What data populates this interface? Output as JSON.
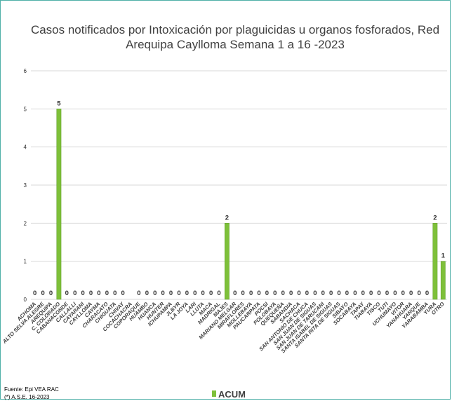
{
  "chart_data": {
    "type": "bar",
    "title_lines": [
      "Casos notificados por Intoxicación por plaguicidas u organos fosforados, Red",
      "Arequipa Caylloma Semana 1 a 16 -2023"
    ],
    "xlabel": "",
    "ylabel": "",
    "ylim": [
      0,
      6
    ],
    "yticks": [
      0,
      1,
      2,
      3,
      4,
      5,
      6
    ],
    "grid": true,
    "legend_position": "bottom",
    "categories": [
      "ACHOMA",
      "ALTO SELVA ALEGRE",
      "AREQUIPA",
      "C. COLORADO",
      "CABANACONDE",
      "CALLALLI",
      "CAYARANI",
      "CAYLLOMA",
      "CAYMA",
      "CHARACATO",
      "CHIGUATA",
      "CHIVAY",
      "COCACHACRA",
      "COPORAQUE",
      "HUAMBO",
      "HUANCA",
      "HUNTER",
      "ICHUPAMPA",
      "JLBYR",
      "LA JOYA",
      "LARI",
      "LLUTA",
      "MACA",
      "MADRIGAL",
      "MAJES",
      "MARIANO MELGAR",
      "MIRAFLORES",
      "MOLLEBAYA",
      "PAUCARPATA",
      "POCSI",
      "POLOBAYA",
      "QUEQUEÑA",
      "SABANDIA",
      "SACHACA",
      "SAN ANTONIO DE CHUCA",
      "SAN JUAN DE SIGUAS",
      "SAN JUAN DE TARUCANI",
      "SANTA ISABEL DE SIGUAS",
      "SANTA RITA DE SIGUAS",
      "SIBAYO",
      "SOCABAYA",
      "TAPAY",
      "TIABAYA",
      "TISCO",
      "TUTI",
      "UCHUMAYO",
      "VITOR",
      "YANAHUARA",
      "YANQUE",
      "YARABAMBA",
      "YURA",
      "OTRO"
    ],
    "series": [
      {
        "name": "ACUM",
        "color": "#7ec03a",
        "values": [
          0,
          0,
          0,
          5,
          0,
          0,
          0,
          0,
          0,
          0,
          0,
          0,
          null,
          0,
          0,
          0,
          0,
          0,
          0,
          0,
          0,
          0,
          0,
          0,
          2,
          0,
          0,
          0,
          0,
          0,
          0,
          0,
          0,
          0,
          0,
          0,
          0,
          0,
          0,
          0,
          0,
          0,
          0,
          0,
          0,
          0,
          0,
          0,
          0,
          0,
          2,
          1
        ]
      }
    ]
  },
  "footer": {
    "source_line1": "Fuente: Epi VEA RAC",
    "source_line2": "(*) A.S.E. 16-2023"
  }
}
